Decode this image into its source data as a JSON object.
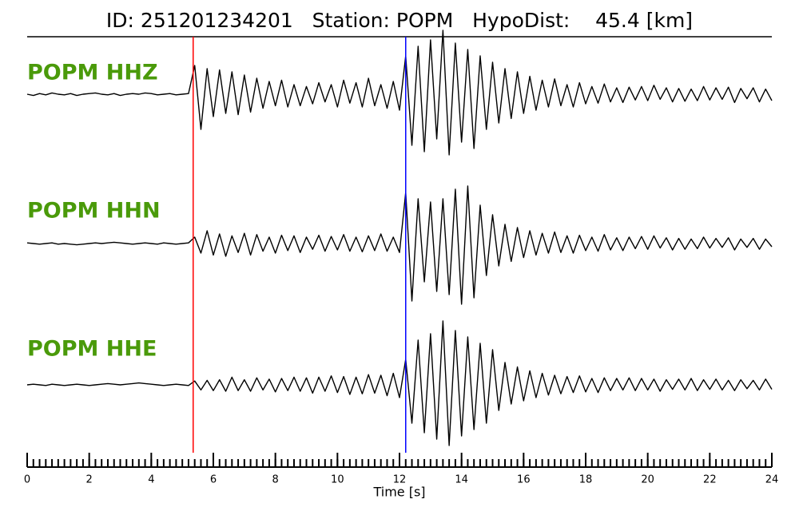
{
  "chart_data": {
    "type": "line",
    "title": "ID: 251201234201   Station: POPM   HypoDist:    45.4 [km]",
    "xlabel": "Time [s]",
    "xlim": [
      0,
      24
    ],
    "xticks": [
      0,
      2,
      4,
      6,
      8,
      10,
      12,
      14,
      16,
      18,
      20,
      22,
      24
    ],
    "label_color": "#4a9a0a",
    "line_color": "#000000",
    "markers": [
      {
        "x": 5.35,
        "color": "#ff0000"
      },
      {
        "x": 12.2,
        "color": "#0000ff"
      }
    ],
    "x": [
      0,
      0.2,
      0.4,
      0.6,
      0.8,
      1,
      1.2,
      1.4,
      1.6,
      1.8,
      2,
      2.2,
      2.4,
      2.6,
      2.8,
      3,
      3.2,
      3.4,
      3.6,
      3.8,
      4,
      4.2,
      4.4,
      4.6,
      4.8,
      5,
      5.2,
      5.4,
      5.6,
      5.8,
      6,
      6.2,
      6.4,
      6.6,
      6.8,
      7,
      7.2,
      7.4,
      7.6,
      7.8,
      8,
      8.2,
      8.4,
      8.6,
      8.8,
      9,
      9.2,
      9.4,
      9.6,
      9.8,
      10,
      10.2,
      10.4,
      10.6,
      10.8,
      11,
      11.2,
      11.4,
      11.6,
      11.8,
      12,
      12.2,
      12.4,
      12.6,
      12.8,
      13,
      13.2,
      13.4,
      13.6,
      13.8,
      14,
      14.2,
      14.4,
      14.6,
      14.8,
      15,
      15.2,
      15.4,
      15.6,
      15.8,
      16,
      16.2,
      16.4,
      16.6,
      16.8,
      17,
      17.2,
      17.4,
      17.6,
      17.8,
      18,
      18.2,
      18.4,
      18.6,
      18.8,
      19,
      19.2,
      19.4,
      19.6,
      19.8,
      20,
      20.2,
      20.4,
      20.6,
      20.8,
      21,
      21.2,
      21.4,
      21.6,
      21.8,
      22,
      22.2,
      22.4,
      22.6,
      22.8,
      23,
      23.2,
      23.4,
      23.6,
      23.8,
      24
    ],
    "series": [
      {
        "name": "POPM HHZ",
        "values": [
          0,
          -2,
          1,
          -1,
          2,
          0,
          -1,
          1,
          -2,
          0,
          1,
          2,
          0,
          -1,
          1,
          -2,
          0,
          1,
          0,
          2,
          1,
          -1,
          0,
          1,
          -1,
          0,
          1,
          45,
          -55,
          40,
          -35,
          38,
          -30,
          35,
          -32,
          30,
          -28,
          25,
          -22,
          20,
          -18,
          22,
          -20,
          15,
          -18,
          12,
          -15,
          18,
          -12,
          15,
          -20,
          22,
          -14,
          18,
          -20,
          25,
          -18,
          15,
          -22,
          20,
          -25,
          60,
          -80,
          75,
          -90,
          85,
          -70,
          100,
          -95,
          80,
          -75,
          70,
          -85,
          60,
          -55,
          50,
          -45,
          40,
          -38,
          35,
          -30,
          28,
          -25,
          22,
          -20,
          24,
          -18,
          15,
          -20,
          18,
          -15,
          12,
          -14,
          16,
          -12,
          10,
          -13,
          11,
          -9,
          12,
          -10,
          14,
          -8,
          10,
          -12,
          9,
          -11,
          8,
          -10,
          12,
          -9,
          10,
          -8,
          11,
          -13,
          9,
          -7,
          10,
          -12,
          8,
          -10
        ]
      },
      {
        "name": "POPM HHN",
        "values": [
          1,
          0,
          -1,
          0,
          1,
          -1,
          0,
          -1,
          -2,
          -1,
          0,
          1,
          0,
          1,
          2,
          1,
          0,
          -1,
          0,
          1,
          0,
          -1,
          1,
          0,
          -1,
          0,
          1,
          10,
          -15,
          20,
          -18,
          15,
          -20,
          12,
          -14,
          16,
          -18,
          14,
          -12,
          10,
          -15,
          13,
          -11,
          12,
          -14,
          10,
          -9,
          13,
          -12,
          11,
          -10,
          14,
          -12,
          10,
          -13,
          12,
          -11,
          15,
          -12,
          10,
          -14,
          80,
          -90,
          70,
          -60,
          65,
          -75,
          70,
          -80,
          85,
          -95,
          90,
          -85,
          60,
          -50,
          45,
          -35,
          30,
          -28,
          25,
          -22,
          20,
          -18,
          16,
          -15,
          18,
          -14,
          12,
          -15,
          13,
          -11,
          10,
          -12,
          14,
          -10,
          9,
          -11,
          10,
          -8,
          11,
          -9,
          12,
          -7,
          9,
          -10,
          8,
          -9,
          7,
          -8,
          10,
          -7,
          8,
          -6,
          9,
          -10,
          7,
          -6,
          8,
          -9,
          7,
          -5
        ]
      },
      {
        "name": "POPM HHE",
        "values": [
          0,
          1,
          0,
          -1,
          1,
          0,
          -1,
          0,
          1,
          0,
          -1,
          0,
          1,
          2,
          1,
          0,
          1,
          2,
          3,
          2,
          1,
          0,
          -1,
          0,
          1,
          0,
          -1,
          6,
          -8,
          7,
          -9,
          8,
          -10,
          12,
          -9,
          8,
          -10,
          11,
          -8,
          9,
          -11,
          10,
          -9,
          12,
          -10,
          11,
          -13,
          12,
          -10,
          14,
          -12,
          13,
          -15,
          12,
          -14,
          16,
          -13,
          15,
          -17,
          18,
          -20,
          40,
          -60,
          70,
          -75,
          80,
          -85,
          100,
          -95,
          85,
          -80,
          75,
          -70,
          65,
          -60,
          55,
          -40,
          35,
          -30,
          28,
          -25,
          22,
          -20,
          18,
          -16,
          15,
          -14,
          13,
          -12,
          14,
          -11,
          10,
          -12,
          11,
          -9,
          10,
          -8,
          11,
          -9,
          10,
          -8,
          9,
          -10,
          8,
          -7,
          9,
          -8,
          10,
          -9,
          8,
          -7,
          9,
          -8,
          7,
          -9,
          8,
          -6,
          7,
          -8,
          9,
          -7
        ]
      }
    ]
  }
}
